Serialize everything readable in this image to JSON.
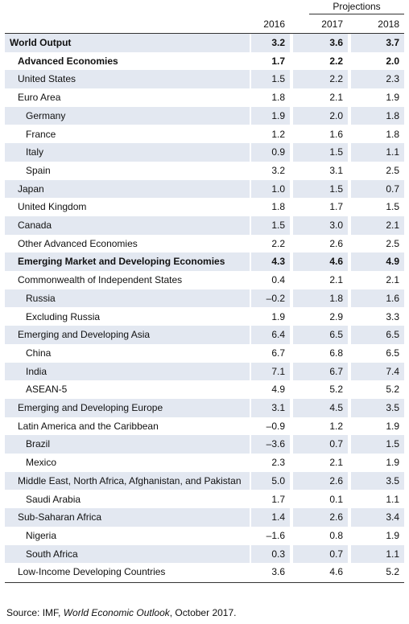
{
  "header": {
    "projections": "Projections",
    "years": [
      "2016",
      "2017",
      "2018"
    ]
  },
  "table": {
    "rows": [
      [
        "World Output",
        "3.2",
        "3.6",
        "3.7"
      ],
      [
        "Advanced Economies",
        "1.7",
        "2.2",
        "2.0"
      ],
      [
        "United States",
        "1.5",
        "2.2",
        "2.3"
      ],
      [
        "Euro Area",
        "1.8",
        "2.1",
        "1.9"
      ],
      [
        "Germany",
        "1.9",
        "2.0",
        "1.8"
      ],
      [
        "France",
        "1.2",
        "1.6",
        "1.8"
      ],
      [
        "Italy",
        "0.9",
        "1.5",
        "1.1"
      ],
      [
        "Spain",
        "3.2",
        "3.1",
        "2.5"
      ],
      [
        "Japan",
        "1.0",
        "1.5",
        "0.7"
      ],
      [
        "United Kingdom",
        "1.8",
        "1.7",
        "1.5"
      ],
      [
        "Canada",
        "1.5",
        "3.0",
        "2.1"
      ],
      [
        "Other Advanced Economies",
        "2.2",
        "2.6",
        "2.5"
      ],
      [
        "Emerging Market and Developing Economies",
        "4.3",
        "4.6",
        "4.9"
      ],
      [
        "Commonwealth of Independent States",
        "0.4",
        "2.1",
        "2.1"
      ],
      [
        "Russia",
        "–0.2",
        "1.8",
        "1.6"
      ],
      [
        "Excluding Russia",
        "1.9",
        "2.9",
        "3.3"
      ],
      [
        "Emerging and Developing Asia",
        "6.4",
        "6.5",
        "6.5"
      ],
      [
        "China",
        "6.7",
        "6.8",
        "6.5"
      ],
      [
        "India",
        "7.1",
        "6.7",
        "7.4"
      ],
      [
        "ASEAN-5",
        "4.9",
        "5.2",
        "5.2"
      ],
      [
        "Emerging and Developing Europe",
        "3.1",
        "4.5",
        "3.5"
      ],
      [
        "Latin America and the Caribbean",
        "–0.9",
        "1.2",
        "1.9"
      ],
      [
        "Brazil",
        "–3.6",
        "0.7",
        "1.5"
      ],
      [
        "Mexico",
        "2.3",
        "2.1",
        "1.9"
      ],
      [
        "Middle East, North Africa, Afghanistan, and Pakistan",
        "5.0",
        "2.6",
        "3.5"
      ],
      [
        "Saudi Arabia",
        "1.7",
        "0.1",
        "1.1"
      ],
      [
        "Sub-Saharan Africa",
        "1.4",
        "2.6",
        "3.4"
      ],
      [
        "Nigeria",
        "–1.6",
        "0.8",
        "1.9"
      ],
      [
        "South Africa",
        "0.3",
        "0.7",
        "1.1"
      ],
      [
        "Low-Income Developing Countries",
        "3.6",
        "4.6",
        "5.2"
      ]
    ]
  },
  "source": {
    "prefix": "Source: IMF,",
    "title": "World Economic Outlook",
    "suffix": ", October 2017."
  }
}
